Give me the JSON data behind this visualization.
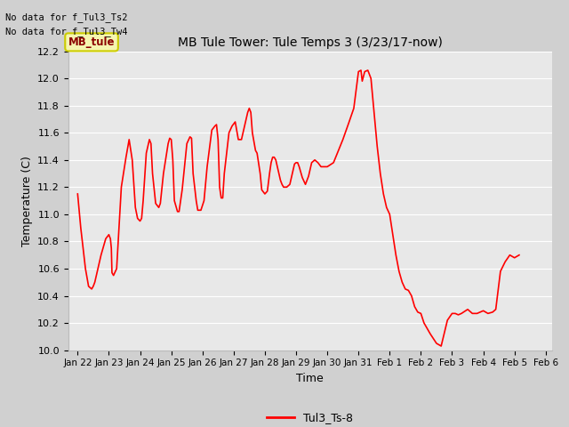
{
  "title": "MB Tule Tower: Tule Temps 3 (3/23/17-now)",
  "xlabel": "Time",
  "ylabel": "Temperature (C)",
  "ylim": [
    10.0,
    12.2
  ],
  "yticks": [
    10.0,
    10.2,
    10.4,
    10.6,
    10.8,
    11.0,
    11.2,
    11.4,
    11.6,
    11.8,
    12.0,
    12.2
  ],
  "line_color": "#ff0000",
  "line_width": 1.2,
  "no_data_text1": "No data for f_Tul3_Ts2",
  "no_data_text2": "No data for f_Tul3_Tw4",
  "mb_tule_label": "MB_tule",
  "legend_label": "Tul3_Ts-8",
  "xtick_labels": [
    "Jan 22",
    "Jan 23",
    "Jan 24",
    "Jan 25",
    "Jan 26",
    "Jan 27",
    "Jan 28",
    "Jan 29",
    "Jan 30",
    "Jan 31",
    "Feb 1",
    "Feb 2",
    "Feb 3",
    "Feb 4",
    "Feb 5",
    "Feb 6"
  ],
  "temp_data": [
    [
      0.0,
      11.15
    ],
    [
      0.1,
      10.9
    ],
    [
      0.25,
      10.6
    ],
    [
      0.35,
      10.47
    ],
    [
      0.45,
      10.45
    ],
    [
      0.5,
      10.47
    ],
    [
      0.55,
      10.5
    ],
    [
      0.65,
      10.6
    ],
    [
      0.75,
      10.7
    ],
    [
      0.85,
      10.78
    ],
    [
      0.9,
      10.82
    ],
    [
      1.0,
      10.85
    ],
    [
      1.05,
      10.82
    ],
    [
      1.08,
      10.75
    ],
    [
      1.1,
      10.57
    ],
    [
      1.15,
      10.55
    ],
    [
      1.25,
      10.6
    ],
    [
      1.4,
      11.2
    ],
    [
      1.55,
      11.42
    ],
    [
      1.65,
      11.55
    ],
    [
      1.75,
      11.4
    ],
    [
      1.85,
      11.05
    ],
    [
      1.92,
      10.97
    ],
    [
      2.0,
      10.95
    ],
    [
      2.05,
      10.97
    ],
    [
      2.1,
      11.1
    ],
    [
      2.2,
      11.45
    ],
    [
      2.3,
      11.55
    ],
    [
      2.35,
      11.52
    ],
    [
      2.4,
      11.3
    ],
    [
      2.5,
      11.08
    ],
    [
      2.6,
      11.05
    ],
    [
      2.65,
      11.08
    ],
    [
      2.75,
      11.3
    ],
    [
      2.9,
      11.52
    ],
    [
      2.95,
      11.56
    ],
    [
      3.0,
      11.55
    ],
    [
      3.05,
      11.4
    ],
    [
      3.1,
      11.1
    ],
    [
      3.2,
      11.02
    ],
    [
      3.25,
      11.02
    ],
    [
      3.35,
      11.18
    ],
    [
      3.5,
      11.52
    ],
    [
      3.6,
      11.57
    ],
    [
      3.65,
      11.56
    ],
    [
      3.7,
      11.3
    ],
    [
      3.8,
      11.1
    ],
    [
      3.85,
      11.03
    ],
    [
      3.95,
      11.03
    ],
    [
      4.05,
      11.1
    ],
    [
      4.15,
      11.35
    ],
    [
      4.3,
      11.62
    ],
    [
      4.4,
      11.65
    ],
    [
      4.45,
      11.66
    ],
    [
      4.5,
      11.55
    ],
    [
      4.55,
      11.2
    ],
    [
      4.6,
      11.12
    ],
    [
      4.65,
      11.12
    ],
    [
      4.7,
      11.3
    ],
    [
      4.85,
      11.6
    ],
    [
      4.95,
      11.65
    ],
    [
      5.05,
      11.68
    ],
    [
      5.15,
      11.55
    ],
    [
      5.25,
      11.55
    ],
    [
      5.35,
      11.65
    ],
    [
      5.45,
      11.75
    ],
    [
      5.5,
      11.78
    ],
    [
      5.55,
      11.75
    ],
    [
      5.6,
      11.6
    ],
    [
      5.7,
      11.47
    ],
    [
      5.75,
      11.45
    ],
    [
      5.85,
      11.3
    ],
    [
      5.9,
      11.18
    ],
    [
      6.0,
      11.15
    ],
    [
      6.08,
      11.17
    ],
    [
      6.15,
      11.3
    ],
    [
      6.2,
      11.38
    ],
    [
      6.25,
      11.42
    ],
    [
      6.3,
      11.42
    ],
    [
      6.35,
      11.4
    ],
    [
      6.45,
      11.3
    ],
    [
      6.5,
      11.25
    ],
    [
      6.55,
      11.22
    ],
    [
      6.6,
      11.2
    ],
    [
      6.7,
      11.2
    ],
    [
      6.8,
      11.22
    ],
    [
      6.88,
      11.3
    ],
    [
      6.95,
      11.37
    ],
    [
      7.0,
      11.38
    ],
    [
      7.05,
      11.38
    ],
    [
      7.1,
      11.35
    ],
    [
      7.2,
      11.27
    ],
    [
      7.3,
      11.22
    ],
    [
      7.4,
      11.28
    ],
    [
      7.5,
      11.38
    ],
    [
      7.6,
      11.4
    ],
    [
      7.7,
      11.38
    ],
    [
      7.8,
      11.35
    ],
    [
      8.0,
      11.35
    ],
    [
      8.2,
      11.38
    ],
    [
      8.5,
      11.55
    ],
    [
      8.7,
      11.68
    ],
    [
      8.85,
      11.78
    ],
    [
      9.0,
      12.05
    ],
    [
      9.08,
      12.06
    ],
    [
      9.12,
      11.98
    ],
    [
      9.2,
      12.05
    ],
    [
      9.3,
      12.06
    ],
    [
      9.4,
      12.0
    ],
    [
      9.5,
      11.75
    ],
    [
      9.6,
      11.5
    ],
    [
      9.7,
      11.3
    ],
    [
      9.8,
      11.15
    ],
    [
      9.9,
      11.05
    ],
    [
      10.0,
      11.0
    ],
    [
      10.1,
      10.85
    ],
    [
      10.2,
      10.7
    ],
    [
      10.3,
      10.58
    ],
    [
      10.4,
      10.5
    ],
    [
      10.5,
      10.45
    ],
    [
      10.6,
      10.44
    ],
    [
      10.7,
      10.4
    ],
    [
      10.8,
      10.32
    ],
    [
      10.9,
      10.28
    ],
    [
      11.0,
      10.27
    ],
    [
      11.1,
      10.2
    ],
    [
      11.3,
      10.12
    ],
    [
      11.5,
      10.05
    ],
    [
      11.65,
      10.03
    ],
    [
      11.85,
      10.22
    ],
    [
      12.0,
      10.27
    ],
    [
      12.1,
      10.27
    ],
    [
      12.2,
      10.26
    ],
    [
      12.3,
      10.27
    ],
    [
      12.5,
      10.3
    ],
    [
      12.65,
      10.27
    ],
    [
      12.8,
      10.27
    ],
    [
      13.0,
      10.29
    ],
    [
      13.15,
      10.27
    ],
    [
      13.3,
      10.28
    ],
    [
      13.4,
      10.3
    ],
    [
      13.55,
      10.58
    ],
    [
      13.7,
      10.65
    ],
    [
      13.85,
      10.7
    ],
    [
      14.0,
      10.68
    ],
    [
      14.15,
      10.7
    ]
  ]
}
